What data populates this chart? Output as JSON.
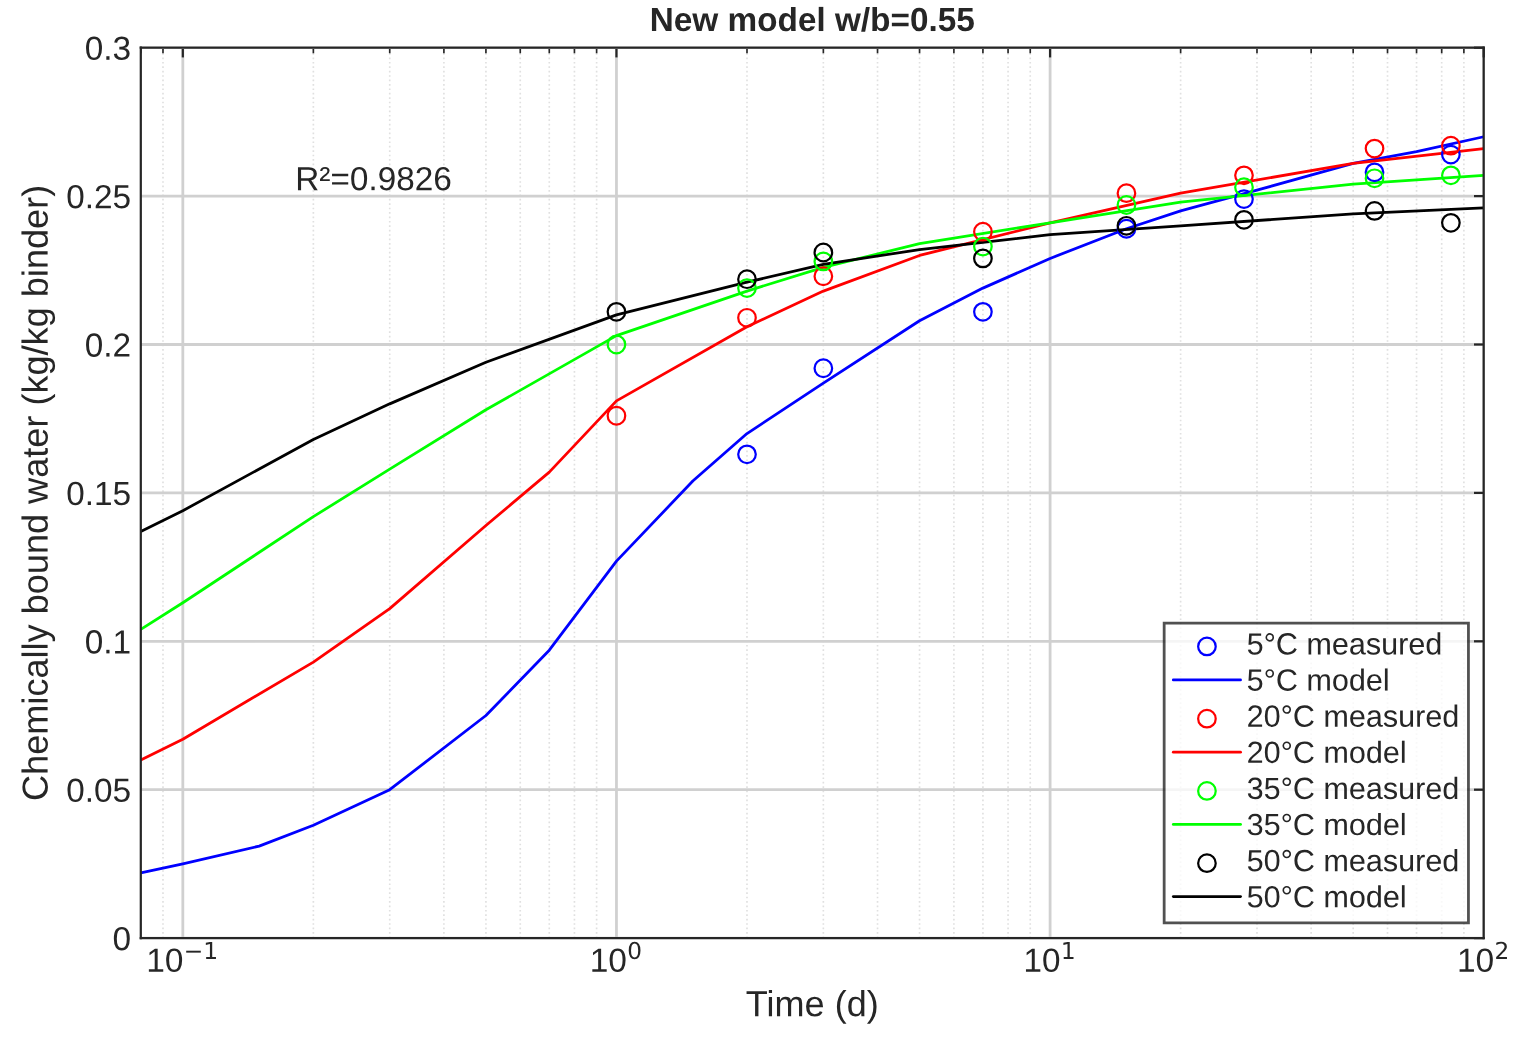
{
  "chart_data": {
    "type": "line",
    "title": "New model w/b=0.55",
    "xlabel": "Time (d)",
    "ylabel": "Chemically bound water (kg/kg binder)",
    "annotations": [
      "R²=0.9826"
    ],
    "log": "x",
    "xlim": [
      0.08,
      100
    ],
    "xticks": [
      {
        "value": 0.1,
        "label": "10$^{−1}$"
      },
      {
        "value": 1,
        "label": "10$^{0}$"
      },
      {
        "value": 10,
        "label": "10$^{1}$"
      },
      {
        "value": 100,
        "label": "10$^{2}$"
      }
    ],
    "ylim": [
      0,
      0.3
    ],
    "yticks": [
      0,
      0.05,
      0.1,
      0.15,
      0.2,
      0.25,
      0.3
    ],
    "grid": true,
    "legend": "bottom right",
    "series": [
      {
        "name": "5°C measured",
        "type": "scatter",
        "marker": "circle",
        "color": "#0000ff",
        "x": [
          2,
          3,
          7,
          15,
          28,
          56,
          84
        ],
        "values": [
          0.163,
          0.192,
          0.211,
          0.239,
          0.249,
          0.258,
          0.264
        ]
      },
      {
        "name": "5°C model",
        "color": "#0000ff",
        "x": [
          0.08,
          0.1,
          0.15,
          0.2,
          0.3,
          0.5,
          0.7,
          1,
          1.5,
          2,
          3,
          5,
          7,
          10,
          15,
          20,
          30,
          50,
          70,
          100
        ],
        "values": [
          0.022,
          0.025,
          0.031,
          0.038,
          0.05,
          0.075,
          0.097,
          0.127,
          0.154,
          0.17,
          0.187,
          0.208,
          0.219,
          0.229,
          0.239,
          0.245,
          0.252,
          0.261,
          0.265,
          0.27
        ]
      },
      {
        "name": "20°C measured",
        "type": "scatter",
        "marker": "circle",
        "color": "#ff0000",
        "x": [
          1,
          2,
          3,
          7,
          15,
          28,
          56,
          84
        ],
        "values": [
          0.176,
          0.209,
          0.223,
          0.238,
          0.251,
          0.257,
          0.266,
          0.267
        ]
      },
      {
        "name": "20°C model",
        "color": "#ff0000",
        "x": [
          0.08,
          0.1,
          0.2,
          0.3,
          0.5,
          0.7,
          1,
          2,
          3,
          5,
          10,
          20,
          50,
          100
        ],
        "values": [
          0.06,
          0.067,
          0.093,
          0.111,
          0.139,
          0.157,
          0.181,
          0.206,
          0.218,
          0.23,
          0.241,
          0.251,
          0.261,
          0.266
        ]
      },
      {
        "name": "35°C measured",
        "type": "scatter",
        "marker": "circle",
        "color": "#00ff00",
        "x": [
          1,
          2,
          3,
          7,
          15,
          28,
          56,
          84
        ],
        "values": [
          0.2,
          0.219,
          0.228,
          0.233,
          0.247,
          0.253,
          0.256,
          0.257
        ]
      },
      {
        "name": "35°C model",
        "color": "#00ff00",
        "x": [
          0.08,
          0.1,
          0.2,
          0.3,
          0.5,
          1,
          2,
          3,
          5,
          10,
          20,
          50,
          100
        ],
        "values": [
          0.104,
          0.113,
          0.142,
          0.158,
          0.178,
          0.203,
          0.218,
          0.226,
          0.234,
          0.241,
          0.248,
          0.254,
          0.257
        ]
      },
      {
        "name": "50°C measured",
        "type": "scatter",
        "marker": "circle",
        "color": "#000000",
        "x": [
          1,
          2,
          3,
          7,
          15,
          28,
          56,
          84
        ],
        "values": [
          0.211,
          0.222,
          0.231,
          0.229,
          0.24,
          0.242,
          0.245,
          0.241
        ]
      },
      {
        "name": "50°C model",
        "color": "#000000",
        "x": [
          0.08,
          0.1,
          0.2,
          0.3,
          0.5,
          1,
          2,
          3,
          5,
          10,
          20,
          50,
          100
        ],
        "values": [
          0.137,
          0.144,
          0.168,
          0.18,
          0.194,
          0.21,
          0.221,
          0.227,
          0.232,
          0.237,
          0.24,
          0.244,
          0.246
        ]
      }
    ]
  }
}
